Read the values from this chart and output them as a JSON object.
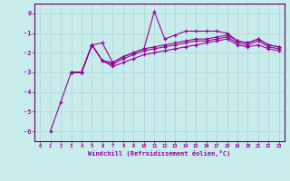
{
  "xlabel": "Windchill (Refroidissement éolien,°C)",
  "background_color": "#c8ecec",
  "grid_color": "#b0d8d8",
  "line_color": "#990099",
  "spine_color": "#660066",
  "xlim": [
    -0.5,
    23.5
  ],
  "ylim": [
    -6.5,
    0.5
  ],
  "yticks": [
    0,
    -1,
    -2,
    -3,
    -4,
    -5,
    -6
  ],
  "xticks": [
    0,
    1,
    2,
    3,
    4,
    5,
    6,
    7,
    8,
    9,
    10,
    11,
    12,
    13,
    14,
    15,
    16,
    17,
    18,
    19,
    20,
    21,
    22,
    23
  ],
  "series": [
    [
      null,
      -6.0,
      -4.5,
      -3.0,
      -3.0,
      -1.6,
      -1.5,
      -2.5,
      -2.2,
      -2.0,
      -1.8,
      0.1,
      -1.3,
      -1.1,
      -0.9,
      -0.9,
      -0.9,
      -0.9,
      -1.0,
      -1.4,
      -1.5,
      -1.3,
      -1.6,
      -1.7
    ],
    [
      null,
      null,
      null,
      -3.0,
      -3.0,
      -1.6,
      -2.4,
      -2.5,
      -2.2,
      -2.0,
      -1.8,
      -1.7,
      -1.6,
      -1.5,
      -1.4,
      -1.3,
      -1.3,
      -1.2,
      -1.1,
      -1.4,
      -1.5,
      -1.3,
      -1.6,
      -1.7
    ],
    [
      null,
      null,
      null,
      -3.0,
      -3.0,
      -1.6,
      -2.4,
      -2.6,
      -2.3,
      -2.1,
      -1.9,
      -1.8,
      -1.7,
      -1.6,
      -1.5,
      -1.4,
      -1.4,
      -1.3,
      -1.2,
      -1.5,
      -1.6,
      -1.4,
      -1.7,
      -1.8
    ],
    [
      null,
      null,
      null,
      -3.0,
      -3.0,
      -1.6,
      -2.4,
      -2.7,
      -2.5,
      -2.3,
      -2.1,
      -2.0,
      -1.9,
      -1.8,
      -1.7,
      -1.6,
      -1.5,
      -1.4,
      -1.3,
      -1.6,
      -1.7,
      -1.6,
      -1.8,
      -1.9
    ]
  ]
}
